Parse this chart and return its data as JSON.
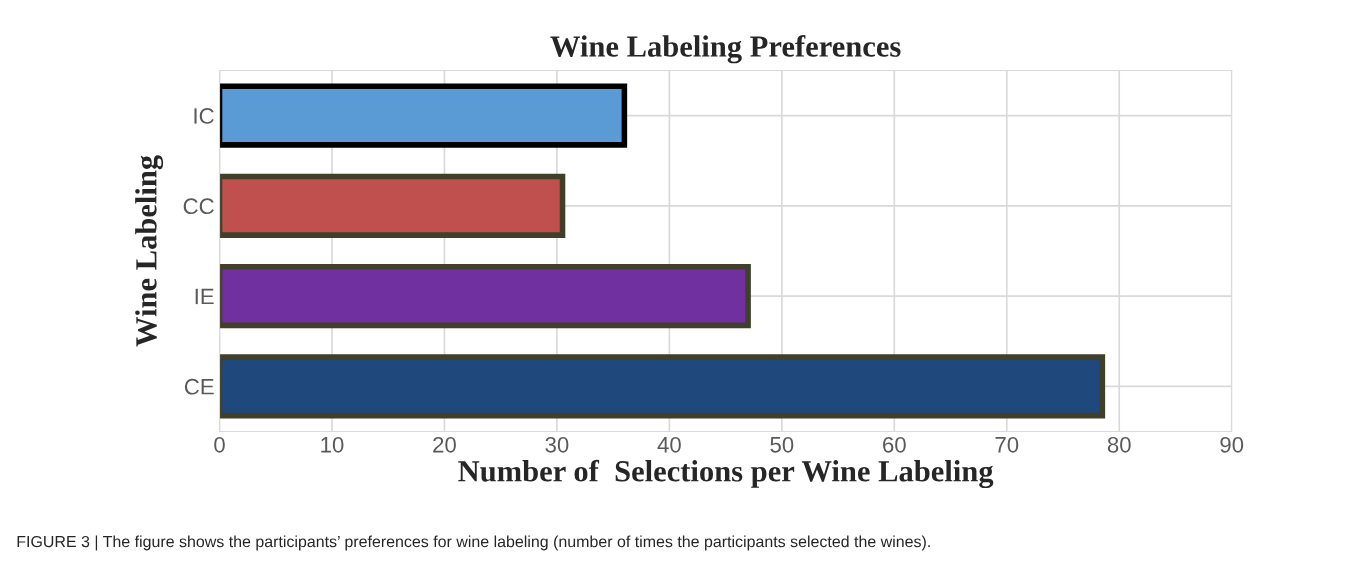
{
  "chart_data": {
    "type": "bar",
    "orientation": "horizontal",
    "title": "Wine Labeling Preferences",
    "xlabel": "Number of  Selections per Wine Labeling",
    "ylabel": "Wine Labeling",
    "categories": [
      "IC",
      "CC",
      "IE",
      "CE"
    ],
    "values": [
      36,
      30.5,
      47,
      78.5
    ],
    "colors": [
      "#5b9bd5",
      "#c0504d",
      "#7030a0",
      "#1f497d"
    ],
    "xlim": [
      0,
      90
    ],
    "xticks": [
      0,
      10,
      20,
      30,
      40,
      50,
      60,
      70,
      80,
      90
    ],
    "grid": true,
    "annotations": [
      "FIGURE 3 | The figure shows the participants’ preferences for wine labeling (number of times the participants selected the wines)."
    ]
  }
}
